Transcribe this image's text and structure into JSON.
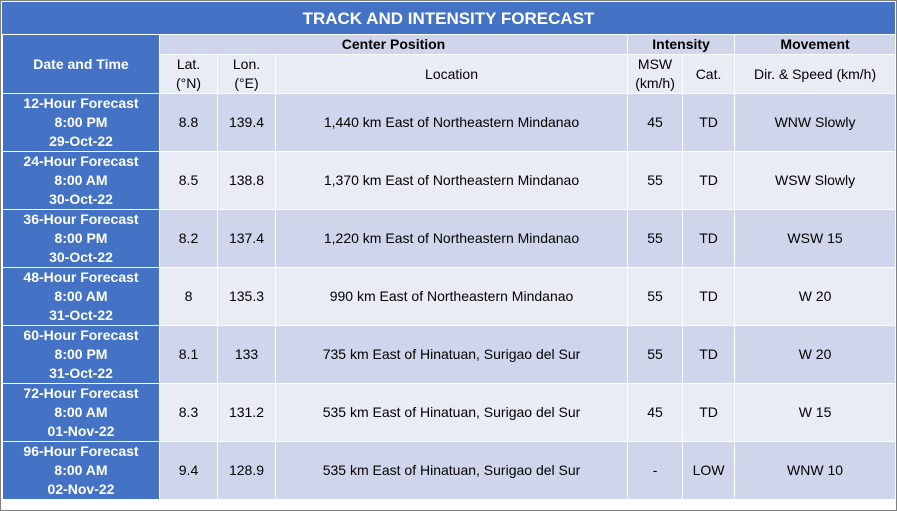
{
  "title": "TRACK AND INTENSITY FORECAST",
  "headers": {
    "date_time": "Date and Time",
    "center_position": "Center Position",
    "intensity": "Intensity",
    "movement": "Movement",
    "lat_1": "Lat.",
    "lat_2": "(°N)",
    "lon_1": "Lon.",
    "lon_2": "(°E)",
    "location": "Location",
    "msw_1": "MSW",
    "msw_2": "(km/h)",
    "cat": "Cat.",
    "dir_speed": "Dir. & Speed (km/h)"
  },
  "rows": [
    {
      "period": "12-Hour Forecast",
      "time": "8:00 PM",
      "date": "29-Oct-22",
      "lat": "8.8",
      "lon": "139.4",
      "location": "1,440 km East of Northeastern Mindanao",
      "msw": "45",
      "cat": "TD",
      "movement": "WNW Slowly"
    },
    {
      "period": "24-Hour Forecast",
      "time": "8:00 AM",
      "date": "30-Oct-22",
      "lat": "8.5",
      "lon": "138.8",
      "location": "1,370 km East of Northeastern Mindanao",
      "msw": "55",
      "cat": "TD",
      "movement": "WSW Slowly"
    },
    {
      "period": "36-Hour Forecast",
      "time": "8:00 PM",
      "date": "30-Oct-22",
      "lat": "8.2",
      "lon": "137.4",
      "location": "1,220 km East of Northeastern Mindanao",
      "msw": "55",
      "cat": "TD",
      "movement": "WSW 15"
    },
    {
      "period": "48-Hour Forecast",
      "time": "8:00 AM",
      "date": "31-Oct-22",
      "lat": "8",
      "lon": "135.3",
      "location": "990 km East of Northeastern Mindanao",
      "msw": "55",
      "cat": "TD",
      "movement": "W 20"
    },
    {
      "period": "60-Hour Forecast",
      "time": "8:00 PM",
      "date": "31-Oct-22",
      "lat": "8.1",
      "lon": "133",
      "location": "735 km East of Hinatuan, Surigao del Sur",
      "msw": "55",
      "cat": "TD",
      "movement": "W 20"
    },
    {
      "period": "72-Hour Forecast",
      "time": "8:00 AM",
      "date": "01-Nov-22",
      "lat": "8.3",
      "lon": "131.2",
      "location": "535 km East of Hinatuan, Surigao del Sur",
      "msw": "45",
      "cat": "TD",
      "movement": "W 15"
    },
    {
      "period": "96-Hour Forecast",
      "time": "8:00 AM",
      "date": "02-Nov-22",
      "lat": "9.4",
      "lon": "128.9",
      "location": "535 km East of Hinatuan, Surigao del Sur",
      "msw": "-",
      "cat": "LOW",
      "movement": "WNW 10"
    }
  ],
  "colors": {
    "header_blue": "#4472c4",
    "band_dark": "#cfd5ea",
    "band_light": "#e9ebf5"
  }
}
